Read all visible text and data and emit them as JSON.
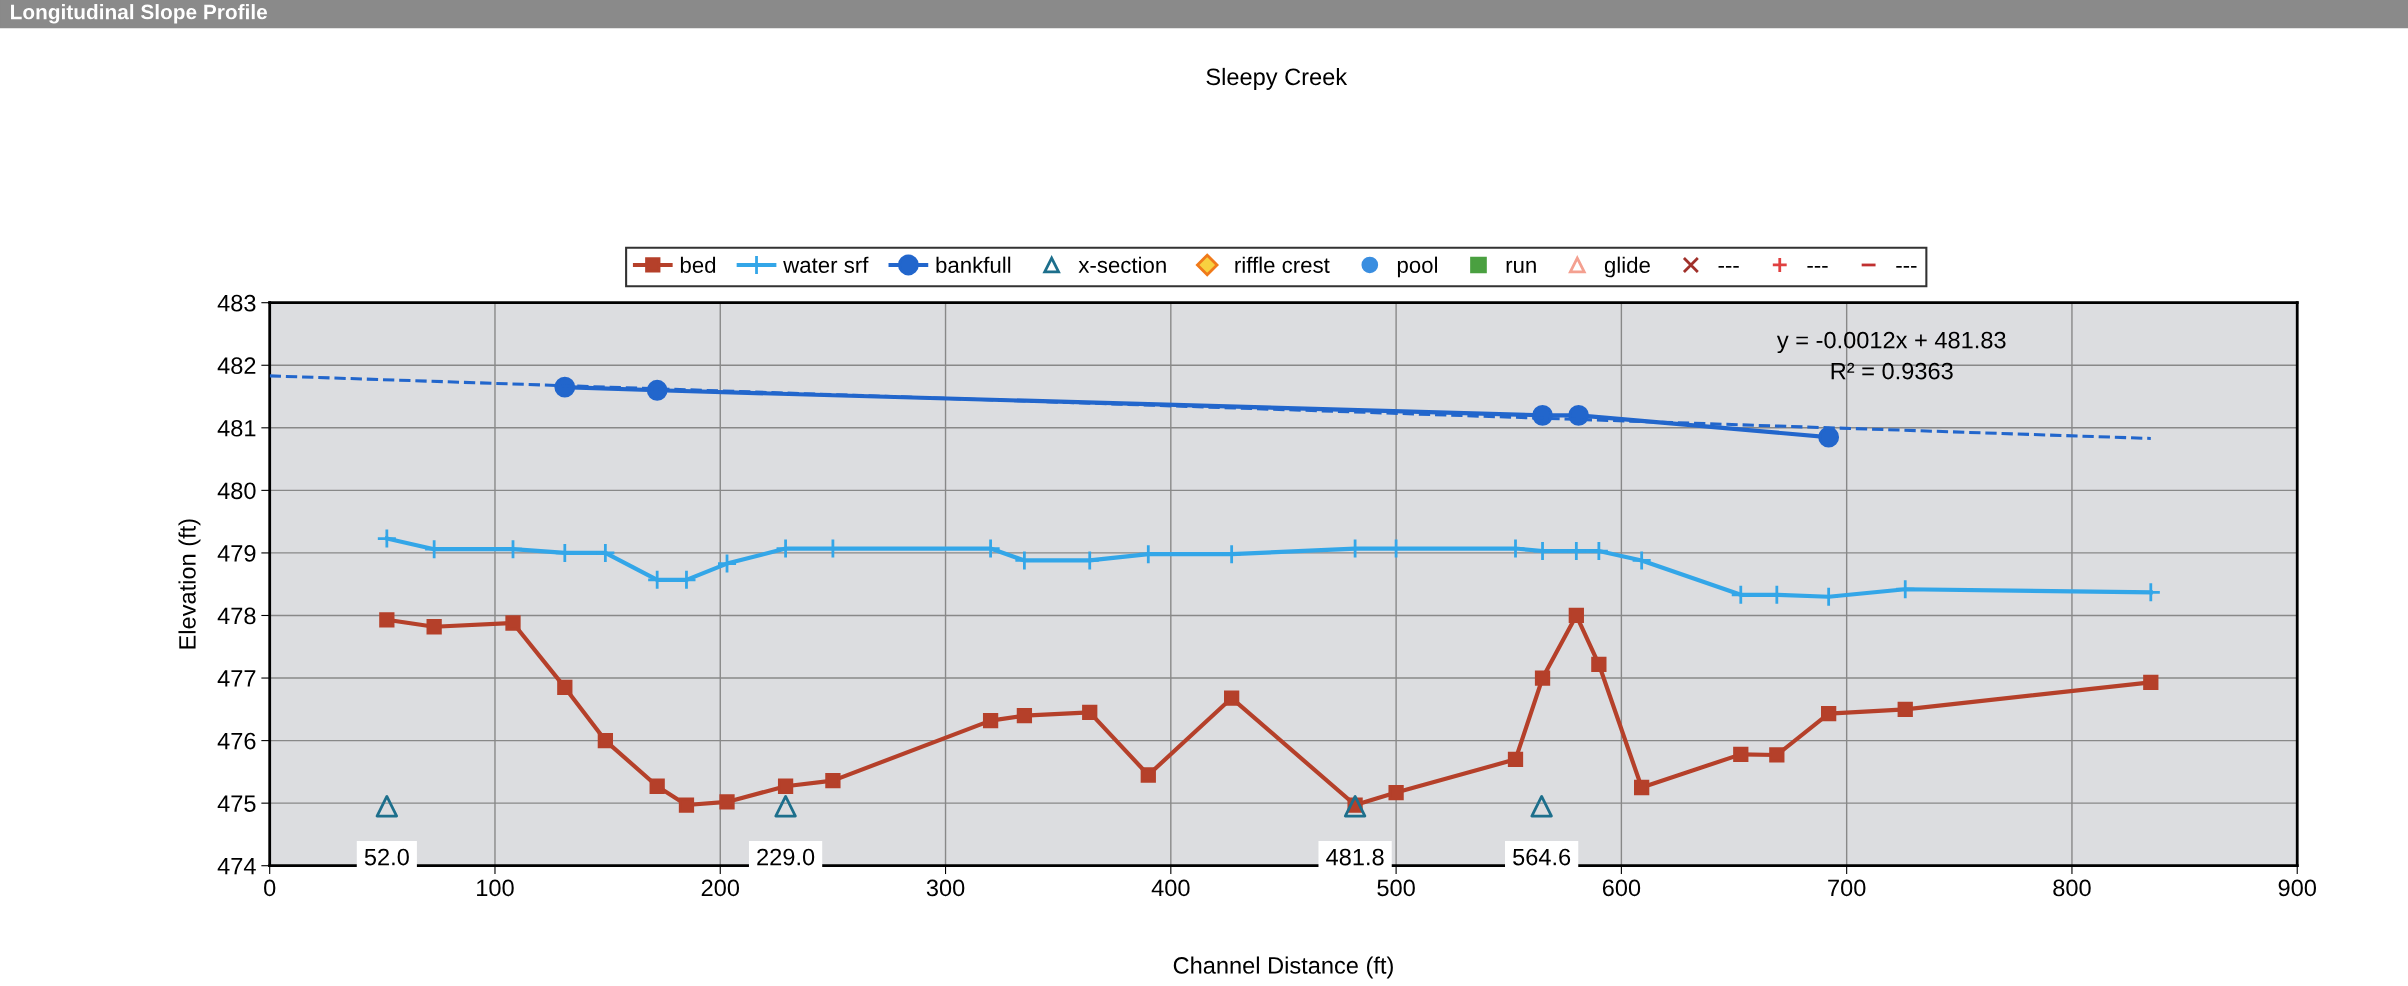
{
  "chart_data": {
    "type": "line",
    "title": "Longitudinal Slope Profile",
    "subtitle": "Sleepy Creek",
    "xlabel": "Channel Distance (ft)",
    "ylabel": "Elevation (ft)",
    "xlim": [
      0,
      900
    ],
    "xticks": [
      0,
      100,
      200,
      300,
      400,
      500,
      600,
      700,
      800,
      900
    ],
    "ylim": [
      474,
      483
    ],
    "yticks": [
      474,
      475,
      476,
      477,
      478,
      479,
      480,
      481,
      482,
      483
    ],
    "grid": true,
    "legend": "top",
    "annotations": [
      "y = -0.0012x + 481.83",
      "R² = 0.9363",
      {
        "text": "52.0",
        "x": 52,
        "y": 474.95
      },
      {
        "text": "229.0",
        "x": 229,
        "y": 474.95
      },
      {
        "text": "481.8",
        "x": 481.8,
        "y": 474.95
      },
      {
        "text": "564.6",
        "x": 564.6,
        "y": 474.95
      }
    ],
    "series": [
      {
        "name": "bed",
        "color": "#b5402a",
        "marker": "square",
        "x": [
          52,
          73,
          108,
          131,
          149,
          172,
          185,
          203,
          229,
          250,
          320,
          335,
          364,
          390,
          427,
          481.8,
          500,
          553,
          565,
          580,
          590,
          609,
          653,
          669,
          692,
          726,
          835
        ],
        "values": [
          477.93,
          477.82,
          477.88,
          476.85,
          476.0,
          475.27,
          474.97,
          475.02,
          475.27,
          475.36,
          476.32,
          476.4,
          476.45,
          475.45,
          476.68,
          474.97,
          475.17,
          475.7,
          477.0,
          478.0,
          477.22,
          475.25,
          475.78,
          475.77,
          476.43,
          476.5,
          476.93
        ]
      },
      {
        "name": "water srf",
        "color": "#33a6e8",
        "marker": "cross",
        "x": [
          52,
          73,
          108,
          131,
          149,
          172,
          185,
          203,
          229,
          250,
          320,
          335,
          364,
          390,
          427,
          481.8,
          500,
          553,
          565,
          580,
          590,
          609,
          653,
          669,
          692,
          726,
          835
        ],
        "values": [
          479.23,
          479.06,
          479.06,
          479.0,
          479.0,
          478.57,
          478.57,
          478.83,
          479.07,
          479.07,
          479.07,
          478.88,
          478.88,
          478.98,
          478.98,
          479.07,
          479.07,
          479.07,
          479.03,
          479.03,
          479.03,
          478.88,
          478.33,
          478.33,
          478.3,
          478.42,
          478.37
        ]
      },
      {
        "name": "bankfull",
        "color": "#2266cc",
        "marker": "circle",
        "x": [
          131,
          172,
          565,
          581,
          692
        ],
        "values": [
          481.65,
          481.6,
          481.2,
          481.2,
          480.85
        ]
      },
      {
        "name": "x-section",
        "type": "scatter",
        "color": "#1d6f8c",
        "marker": "triangle",
        "x": [
          52,
          229,
          481.8,
          564.6
        ],
        "values": [
          474.95,
          474.95,
          474.95,
          474.95
        ]
      },
      {
        "name": "riffle crest",
        "type": "scatter",
        "color": "#f07a1a",
        "marker": "diamond"
      },
      {
        "name": "pool",
        "type": "scatter",
        "color": "#3a8ee0",
        "marker": "circle"
      },
      {
        "name": "run",
        "type": "scatter",
        "color": "#4aa040",
        "marker": "square"
      },
      {
        "name": "glide",
        "type": "scatter",
        "color": "#f4a090",
        "marker": "triangle"
      },
      {
        "name": "---",
        "type": "scatter",
        "color": "#a0302a",
        "marker": "x"
      },
      {
        "name": "---",
        "type": "scatter",
        "color": "#e04040",
        "marker": "plus"
      },
      {
        "name": "---",
        "type": "scatter",
        "color": "#c03030",
        "marker": "dash"
      },
      {
        "color": "#2266cc",
        "line_style": "dashed",
        "marker": "none",
        "x": [
          0,
          835
        ],
        "values": [
          481.83,
          480.83
        ]
      }
    ]
  }
}
